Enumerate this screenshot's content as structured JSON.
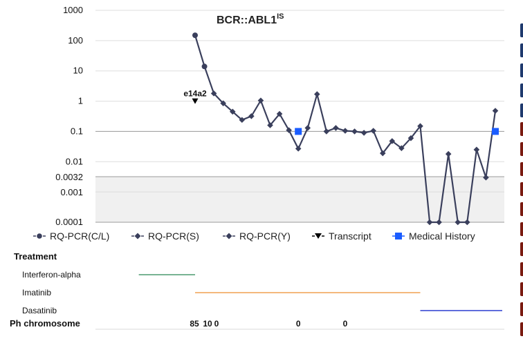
{
  "chart_data": {
    "type": "line",
    "title": "BCR::ABL1",
    "title_superscript": "IS",
    "yscale": "log",
    "ylim": [
      0.0001,
      1000
    ],
    "yticks": [
      "1000",
      "100",
      "10",
      "1",
      "0.1",
      "0.01",
      "0.0032",
      "0.001",
      "0.0001"
    ],
    "reference_line": 0.1,
    "shaded_band": [
      0.0001,
      0.0032
    ],
    "grid": true,
    "legend_position": "bottom",
    "series": [
      {
        "name": "RQ-PCR(C/L)",
        "marker": "circle",
        "color": "#3a3f5c",
        "values": [
          {
            "x": 1,
            "y": 150
          },
          {
            "x": 2,
            "y": 14
          }
        ]
      },
      {
        "name": "RQ-PCR(S)",
        "marker": "diamond",
        "color": "#3a3f5c",
        "values": [
          {
            "x": 3,
            "y": 1.8
          },
          {
            "x": 4,
            "y": 0.85
          },
          {
            "x": 5,
            "y": 0.45
          },
          {
            "x": 6,
            "y": 0.24
          },
          {
            "x": 7,
            "y": 0.32
          },
          {
            "x": 8,
            "y": 1.05
          },
          {
            "x": 9,
            "y": 0.16
          },
          {
            "x": 10,
            "y": 0.38
          },
          {
            "x": 11,
            "y": 0.11
          },
          {
            "x": 12,
            "y": 0.027
          },
          {
            "x": 13,
            "y": 0.13
          },
          {
            "x": 14,
            "y": 1.7
          },
          {
            "x": 15,
            "y": 0.1
          },
          {
            "x": 16,
            "y": 0.13
          },
          {
            "x": 17,
            "y": 0.105
          },
          {
            "x": 18,
            "y": 0.1
          },
          {
            "x": 19,
            "y": 0.09
          },
          {
            "x": 20,
            "y": 0.105
          },
          {
            "x": 21,
            "y": 0.019
          },
          {
            "x": 22,
            "y": 0.048
          },
          {
            "x": 23,
            "y": 0.028
          },
          {
            "x": 24,
            "y": 0.06
          },
          {
            "x": 25,
            "y": 0.15
          },
          {
            "x": 26,
            "y": 0.0001
          },
          {
            "x": 27,
            "y": 0.0001
          },
          {
            "x": 28,
            "y": 0.018
          },
          {
            "x": 29,
            "y": 0.0001
          },
          {
            "x": 30,
            "y": 0.0001
          },
          {
            "x": 31,
            "y": 0.025
          },
          {
            "x": 32,
            "y": 0.003
          },
          {
            "x": 33,
            "y": 0.48
          }
        ]
      },
      {
        "name": "RQ-PCR(Y)",
        "marker": "diamond",
        "color": "#3a3f5c",
        "values": []
      },
      {
        "name": "Transcript",
        "marker": "triangle-down",
        "color": "#000000",
        "values": [
          {
            "x": 1,
            "y": 1,
            "label": "e14a2"
          }
        ]
      },
      {
        "name": "Medical History",
        "marker": "square",
        "color": "#1a5cff",
        "values": [
          {
            "x": 12,
            "y": 0.1
          },
          {
            "x": 33,
            "y": 0.1
          }
        ]
      }
    ],
    "treatment": {
      "title": "Treatment",
      "rows": [
        {
          "label": "Interferon-alpha",
          "color": "#4a9a6e",
          "start": -5.0,
          "end": 1.0
        },
        {
          "label": "Imatinib",
          "color": "#f0a050",
          "start": 1.0,
          "end": 25.0
        },
        {
          "label": "Dasatinib",
          "color": "#2a3bd0",
          "start": 25.0,
          "end": 34.0
        }
      ]
    },
    "ph_chromosome": {
      "label": "Ph chromosome",
      "values": [
        {
          "x": 1,
          "text": "85"
        },
        {
          "x": 2,
          "text": "10"
        },
        {
          "x": 3,
          "text": "0"
        },
        {
          "x": 12,
          "text": "0"
        },
        {
          "x": 17,
          "text": "0"
        }
      ]
    }
  },
  "colors": {
    "line": "#3a3f5c",
    "grid": "#dddddd",
    "band": "#f0f0f0",
    "threshold": "#9a9a9a",
    "edge_tabs": [
      "#1f3a6e",
      "#1f3a6e",
      "#1f3a6e",
      "#1f3a6e",
      "#1f3a6e",
      "#7a1a10",
      "#7a1a10",
      "#7a1a10",
      "#7a1a10",
      "#7a1a10",
      "#7a1a10",
      "#7a1a10",
      "#7a1a10",
      "#7a1a10",
      "#7a1a10",
      "#7a1a10"
    ]
  }
}
